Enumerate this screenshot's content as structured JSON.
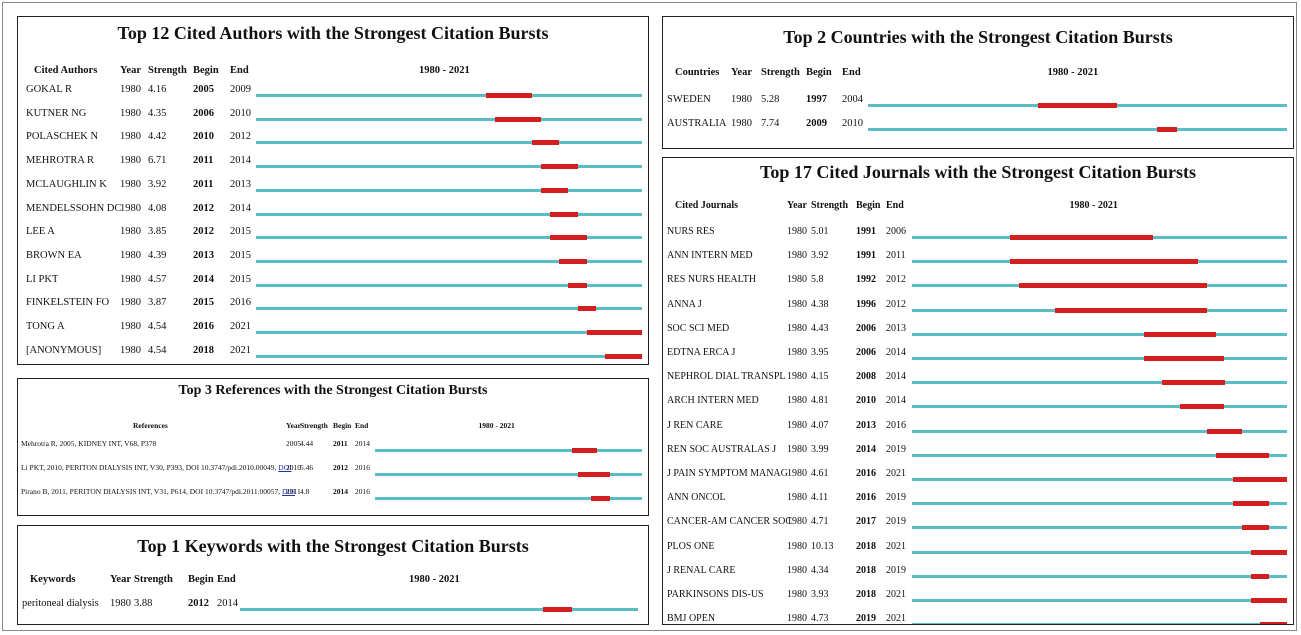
{
  "chart_data": [
    {
      "type": "table",
      "title": "Top 12 Cited Authors with the Strongest Citation Bursts",
      "columns": [
        "Cited Authors",
        "Year",
        "Strength",
        "Begin",
        "End"
      ],
      "range_label": "1980 - 2021",
      "range": [
        1980,
        2021
      ],
      "rows": [
        {
          "label": "GOKAL R",
          "year": "1980",
          "strength": "4.16",
          "begin": "2005",
          "end": "2009"
        },
        {
          "label": "KUTNER NG",
          "year": "1980",
          "strength": "4.35",
          "begin": "2006",
          "end": "2010"
        },
        {
          "label": "POLASCHEK N",
          "year": "1980",
          "strength": "4.42",
          "begin": "2010",
          "end": "2012"
        },
        {
          "label": "MEHROTRA R",
          "year": "1980",
          "strength": "6.71",
          "begin": "2011",
          "end": "2014"
        },
        {
          "label": "MCLAUGHLIN K",
          "year": "1980",
          "strength": "3.92",
          "begin": "2011",
          "end": "2013"
        },
        {
          "label": "MENDELSSOHN DC",
          "year": "1980",
          "strength": "4.08",
          "begin": "2012",
          "end": "2014"
        },
        {
          "label": "LEE A",
          "year": "1980",
          "strength": "3.85",
          "begin": "2012",
          "end": "2015"
        },
        {
          "label": "BROWN EA",
          "year": "1980",
          "strength": "4.39",
          "begin": "2013",
          "end": "2015"
        },
        {
          "label": "LI PKT",
          "year": "1980",
          "strength": "4.57",
          "begin": "2014",
          "end": "2015"
        },
        {
          "label": "FINKELSTEIN FO",
          "year": "1980",
          "strength": "3.87",
          "begin": "2015",
          "end": "2016"
        },
        {
          "label": "TONG A",
          "year": "1980",
          "strength": "4.54",
          "begin": "2016",
          "end": "2021"
        },
        {
          "label": "[ANONYMOUS]",
          "year": "1980",
          "strength": "4.54",
          "begin": "2018",
          "end": "2021"
        }
      ]
    },
    {
      "type": "table",
      "title": "Top 3 References with the Strongest Citation Bursts",
      "columns": [
        "References",
        "Year",
        "Strength",
        "Begin",
        "End"
      ],
      "range_label": "1980 - 2021",
      "range": [
        1980,
        2021
      ],
      "rows": [
        {
          "label": "Mehrotra R, 2005, KIDNEY INT, V68, P378",
          "link": "",
          "year": "2005",
          "strength": "4.44",
          "begin": "2011",
          "end": "2014"
        },
        {
          "label": "Li PKT, 2010, PERITON DIALYSIS INT, V30, P393, DOI 10.3747/pdi.2010.00049,",
          "link": "DOI",
          "year": "2010",
          "strength": "5.46",
          "begin": "2012",
          "end": "2016"
        },
        {
          "label": "Pirano B, 2011, PERITON DIALYSIS INT, V31, P614, DOI 10.3747/pdi.2011.00057,",
          "link": "DOI",
          "year": "2011",
          "strength": "4.8",
          "begin": "2014",
          "end": "2016"
        }
      ]
    },
    {
      "type": "table",
      "title": "Top 1 Keywords with the Strongest Citation Bursts",
      "columns": [
        "Keywords",
        "Year",
        "Strength",
        "Begin",
        "End"
      ],
      "range_label": "1980 - 2021",
      "range": [
        1980,
        2021
      ],
      "rows": [
        {
          "label": "peritoneal dialysis",
          "year": "1980",
          "strength": "3.88",
          "begin": "2012",
          "end": "2014"
        }
      ]
    },
    {
      "type": "table",
      "title": "Top 2 Countries with the Strongest Citation Bursts",
      "columns": [
        "Countries",
        "Year",
        "Strength",
        "Begin",
        "End"
      ],
      "range_label": "1980 - 2021",
      "range": [
        1980,
        2021
      ],
      "rows": [
        {
          "label": "SWEDEN",
          "year": "1980",
          "strength": "5.28",
          "begin": "1997",
          "end": "2004"
        },
        {
          "label": "AUSTRALIA",
          "year": "1980",
          "strength": "7.74",
          "begin": "2009",
          "end": "2010"
        }
      ]
    },
    {
      "type": "table",
      "title": "Top 17 Cited Journals with the Strongest Citation Bursts",
      "columns": [
        "Cited Journals",
        "Year",
        "Strength",
        "Begin",
        "End"
      ],
      "range_label": "1980 - 2021",
      "range": [
        1980,
        2021
      ],
      "rows": [
        {
          "label": "NURS RES",
          "year": "1980",
          "strength": "5.01",
          "begin": "1991",
          "end": "2006"
        },
        {
          "label": "ANN INTERN MED",
          "year": "1980",
          "strength": "3.92",
          "begin": "1991",
          "end": "2011"
        },
        {
          "label": "RES NURS HEALTH",
          "year": "1980",
          "strength": "5.8",
          "begin": "1992",
          "end": "2012"
        },
        {
          "label": "ANNA J",
          "year": "1980",
          "strength": "4.38",
          "begin": "1996",
          "end": "2012"
        },
        {
          "label": "SOC SCI MED",
          "year": "1980",
          "strength": "4.43",
          "begin": "2006",
          "end": "2013"
        },
        {
          "label": "EDTNA ERCA J",
          "year": "1980",
          "strength": "3.95",
          "begin": "2006",
          "end": "2014"
        },
        {
          "label": "NEPHROL DIAL TRANSPL",
          "year": "1980",
          "strength": "4.15",
          "begin": "2008",
          "end": "2014"
        },
        {
          "label": "ARCH INTERN MED",
          "year": "1980",
          "strength": "4.81",
          "begin": "2010",
          "end": "2014"
        },
        {
          "label": "J REN CARE",
          "year": "1980",
          "strength": "4.07",
          "begin": "2013",
          "end": "2016"
        },
        {
          "label": "REN SOC AUSTRALAS J",
          "year": "1980",
          "strength": "3.99",
          "begin": "2014",
          "end": "2019"
        },
        {
          "label": "J PAIN SYMPTOM MANAG",
          "year": "1980",
          "strength": "4.61",
          "begin": "2016",
          "end": "2021"
        },
        {
          "label": "ANN ONCOL",
          "year": "1980",
          "strength": "4.11",
          "begin": "2016",
          "end": "2019"
        },
        {
          "label": "CANCER-AM CANCER SOC",
          "year": "1980",
          "strength": "4.71",
          "begin": "2017",
          "end": "2019"
        },
        {
          "label": "PLOS ONE",
          "year": "1980",
          "strength": "10.13",
          "begin": "2018",
          "end": "2021"
        },
        {
          "label": "J RENAL CARE",
          "year": "1980",
          "strength": "4.34",
          "begin": "2018",
          "end": "2019"
        },
        {
          "label": "PARKINSONS DIS-US",
          "year": "1980",
          "strength": "3.93",
          "begin": "2018",
          "end": "2021"
        },
        {
          "label": "BMJ OPEN",
          "year": "1980",
          "strength": "4.73",
          "begin": "2019",
          "end": "2021"
        }
      ]
    }
  ],
  "colors": {
    "track": "#5bbcc5",
    "burst": "#d41f1f",
    "border": "#222222",
    "link": "#1a35a8"
  }
}
